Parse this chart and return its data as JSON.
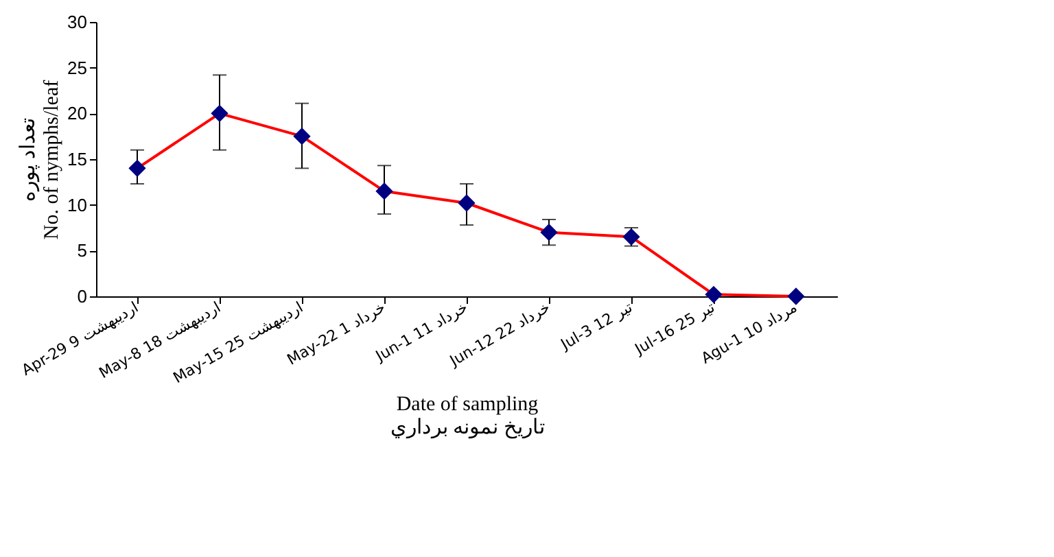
{
  "chart_data": {
    "type": "line",
    "xlabel": "Date of sampling\nتاريخ نمونه برداري",
    "ylabel": "تعداد پوره\nNo. of nymphs/leaf",
    "categories": [
      "Apr-29  9 اردیبهشت",
      "May-8  18 اردیبهشت",
      "May-15  25 اردیبهشت",
      "May-22  1 خرداد",
      "Jun-1  11 خرداد",
      "Jun-12  22 خرداد",
      "Jul-3  12 تیر",
      "Jul-16  25 تیر",
      "Agu-1  10 مرداد"
    ],
    "series": [
      {
        "color": "#ff0000",
        "colors": [
          "#000080",
          "#000080",
          "#000080",
          "#000080",
          "#000080",
          "#000080",
          "#000080",
          "#000080",
          "#000080"
        ],
        "values": [
          14,
          20,
          17.5,
          11.5,
          10.2,
          7,
          6.5,
          0.2,
          0
        ],
        "errors": [
          [
            12.3,
            16
          ],
          [
            16,
            24.2
          ],
          [
            14,
            21.1
          ],
          [
            9,
            14.3
          ],
          [
            7.8,
            12.3
          ],
          [
            5.6,
            8.4
          ],
          [
            5.5,
            7.5
          ],
          null,
          null
        ]
      }
    ],
    "ylim": [
      0,
      30
    ],
    "yticks": [
      0,
      5,
      10,
      15,
      20,
      25,
      30
    ],
    "marker": "diamond",
    "line_style": "solid",
    "grid": false
  }
}
